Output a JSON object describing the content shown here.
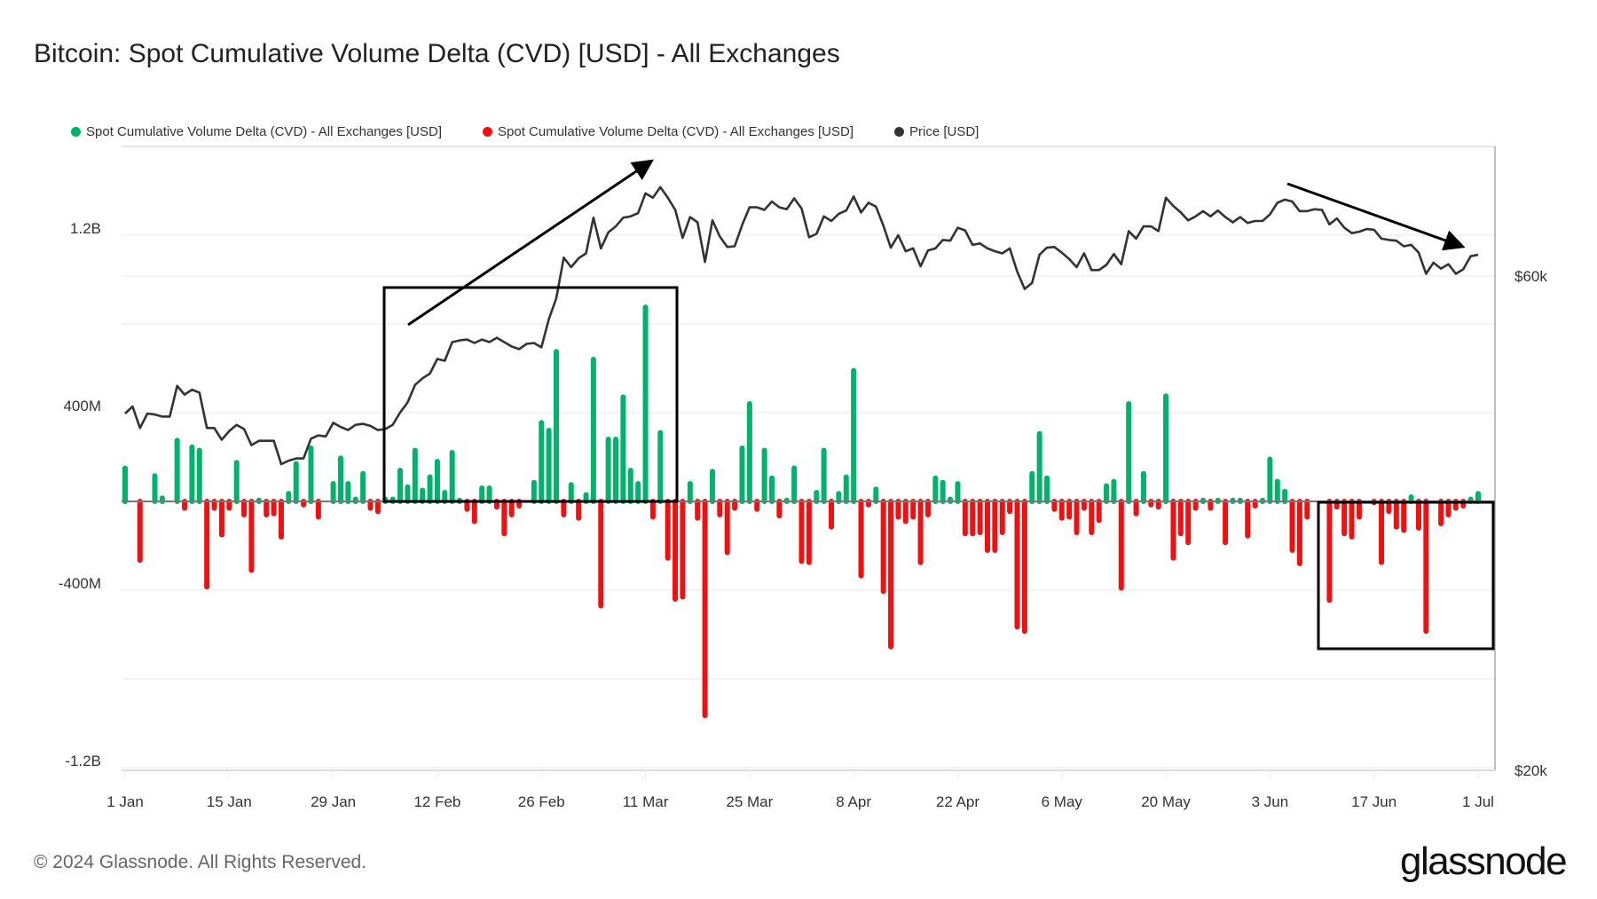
{
  "title": "Bitcoin: Spot Cumulative Volume Delta (CVD) [USD] - All Exchanges",
  "legend": [
    {
      "label": "Spot Cumulative Volume Delta (CVD) - All Exchanges [USD]",
      "color": "#00b26b"
    },
    {
      "label": "Spot Cumulative Volume Delta (CVD) - All Exchanges [USD]",
      "color": "#ee1111"
    },
    {
      "label": "Price [USD]",
      "color": "#333333"
    }
  ],
  "footer": "© 2024 Glassnode. All Rights Reserved.",
  "logo": "glassnode",
  "chart_data": {
    "type": "bar+line",
    "title": "Bitcoin: Spot Cumulative Volume Delta (CVD) [USD] - All Exchanges",
    "x_start": "2024-01-01",
    "x_ticks": [
      "1 Jan",
      "15 Jan",
      "29 Jan",
      "12 Feb",
      "26 Feb",
      "11 Mar",
      "25 Mar",
      "8 Apr",
      "22 Apr",
      "6 May",
      "20 May",
      "3 Jun",
      "17 Jun",
      "1 Jul"
    ],
    "left_axis": {
      "ticks": [
        "1.2B",
        "400M",
        "-400M",
        "-1.2B"
      ],
      "tick_values_millions": [
        1200,
        400,
        -400,
        -1200
      ],
      "range_millions": [
        -1200,
        1200
      ],
      "grid_step_millions": 400
    },
    "right_axis": {
      "scale": "log",
      "ticks": [
        "$60k",
        "$20k"
      ],
      "tick_values_k": [
        60,
        20
      ]
    },
    "grid": true,
    "legend_placement": "top-left",
    "colors": {
      "positive": "#00b26b",
      "negative": "#ee1111",
      "price": "#333333"
    },
    "cvd_daily_millions_usd": [
      150,
      0,
      -265,
      0,
      115,
      15,
      0,
      275,
      -30,
      245,
      230,
      -385,
      -30,
      -150,
      -30,
      175,
      -60,
      -310,
      5,
      -60,
      -55,
      -160,
      35,
      170,
      -15,
      240,
      -70,
      0,
      80,
      195,
      80,
      10,
      125,
      -30,
      -45,
      10,
      10,
      140,
      65,
      230,
      50,
      110,
      180,
      40,
      220,
      5,
      -35,
      -90,
      60,
      60,
      -25,
      -145,
      -60,
      -20,
      0,
      85,
      355,
      320,
      675,
      -60,
      75,
      -75,
      30,
      640,
      -470,
      280,
      280,
      470,
      140,
      80,
      875,
      -70,
      310,
      -255,
      -440,
      -430,
      80,
      -75,
      -965,
      135,
      -60,
      -230,
      -30,
      240,
      440,
      -35,
      230,
      105,
      -65,
      5,
      150,
      -270,
      -275,
      40,
      230,
      -115,
      35,
      110,
      590,
      -335,
      -15,
      55,
      -405,
      -655,
      -70,
      -90,
      -70,
      -275,
      -60,
      105,
      85,
      10,
      80,
      -145,
      -145,
      -140,
      -220,
      -220,
      -140,
      -45,
      -565,
      -585,
      125,
      305,
      105,
      -35,
      -75,
      -70,
      -140,
      -30,
      -140,
      -85,
      70,
      90,
      -390,
      440,
      -55,
      125,
      -15,
      -25,
      475,
      -255,
      -145,
      -185,
      -30,
      5,
      -30,
      5,
      -185,
      5,
      5,
      -155,
      -20,
      5,
      190,
      90,
      45,
      -220,
      -280,
      -70,
      0,
      0,
      -445,
      -25,
      -145,
      -160,
      -70,
      0,
      -5,
      -275,
      -45,
      -115,
      -130,
      20,
      -120,
      -585,
      0,
      -100,
      -60,
      -30,
      -20,
      10,
      35
    ],
    "price_daily_k_usd": [
      44.2,
      44.9,
      42.8,
      44.2,
      44.1,
      43.9,
      43.9,
      47.0,
      46.1,
      46.6,
      46.3,
      42.8,
      42.8,
      41.7,
      42.5,
      43.1,
      42.7,
      41.2,
      41.6,
      41.6,
      41.6,
      39.5,
      39.8,
      40.0,
      40.0,
      41.8,
      42.1,
      42.0,
      43.3,
      42.9,
      42.6,
      43.1,
      43.2,
      43.0,
      42.6,
      42.7,
      43.1,
      44.3,
      45.3,
      47.1,
      47.8,
      48.3,
      49.9,
      49.7,
      51.8,
      52.0,
      52.1,
      51.7,
      52.1,
      51.8,
      52.3,
      51.8,
      51.3,
      51.0,
      51.6,
      51.7,
      51.2,
      54.5,
      57.1,
      62.5,
      61.2,
      62.4,
      63.1,
      68.3,
      63.8,
      66.1,
      67.0,
      68.3,
      68.5,
      69.0,
      72.1,
      71.4,
      73.1,
      71.4,
      69.5,
      65.3,
      68.4,
      67.6,
      61.9,
      67.9,
      65.5,
      64.0,
      64.1,
      67.2,
      69.9,
      69.9,
      69.5,
      70.8,
      69.9,
      69.6,
      71.3,
      69.7,
      65.4,
      65.9,
      68.5,
      67.8,
      68.9,
      69.4,
      71.6,
      69.1,
      70.6,
      70.0,
      67.1,
      63.9,
      65.7,
      63.4,
      63.8,
      61.3,
      63.5,
      63.8,
      65.0,
      64.9,
      66.8,
      66.4,
      64.3,
      64.5,
      63.8,
      63.4,
      63.1,
      63.8,
      60.6,
      58.3,
      59.1,
      62.9,
      63.9,
      64.0,
      63.2,
      62.3,
      61.2,
      63.1,
      60.8,
      60.8,
      61.5,
      63.0,
      61.6,
      66.3,
      65.2,
      67.0,
      67.0,
      66.3,
      71.4,
      70.1,
      69.1,
      67.9,
      68.5,
      69.3,
      68.5,
      69.4,
      68.4,
      67.6,
      68.4,
      67.5,
      67.8,
      67.8,
      68.8,
      70.6,
      71.1,
      70.8,
      69.3,
      69.3,
      69.6,
      69.5,
      67.3,
      68.2,
      66.8,
      66.0,
      66.2,
      66.6,
      66.5,
      65.2,
      65.0,
      64.9,
      64.1,
      64.3,
      63.2,
      60.3,
      61.8,
      61.0,
      61.6,
      60.3,
      60.9,
      62.7,
      62.9
    ]
  }
}
